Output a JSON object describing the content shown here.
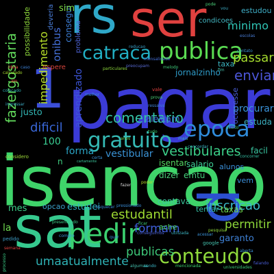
{
  "cloud": {
    "background": "#000000",
    "words": [
      {
        "text": "isencao",
        "color": "#3fd46a"
      },
      {
        "text": "pagar",
        "color": "#3b3bd6"
      },
      {
        "text": "sat",
        "color": "#36c98e"
      },
      {
        "text": "rs",
        "color": "#2fa8c8"
      },
      {
        "text": "ser",
        "color": "#e0413f"
      },
      {
        "text": "1",
        "color": "#3c4fd8"
      },
      {
        "text": "p",
        "color": "#2c4fd0"
      },
      {
        "text": "publica",
        "color": "#5adb52"
      },
      {
        "text": "catraca",
        "color": "#22b0c4"
      },
      {
        "text": "epoca",
        "color": "#2f8bd9"
      },
      {
        "text": "gratuito",
        "color": "#35b9b4"
      },
      {
        "text": "pedir",
        "color": "#3bd06f"
      },
      {
        "text": "conteudo",
        "color": "#8fd93c"
      },
      {
        "text": "fazergostaria",
        "color": "#60d65a"
      },
      {
        "text": "enviar",
        "color": "#4b55d6"
      },
      {
        "text": "passar",
        "color": "#a6dd2e"
      },
      {
        "text": "comentario",
        "color": "#35c3a7"
      },
      {
        "text": "vestibulares",
        "color": "#3cd18a"
      },
      {
        "text": "inscricao",
        "color": "#3cb9c9"
      },
      {
        "text": "umaatualmente",
        "color": "#2fb3b6"
      },
      {
        "text": "estudantil",
        "color": "#9fdc32"
      },
      {
        "text": "publicas",
        "color": "#3ec979"
      },
      {
        "text": "formam",
        "color": "#3e5ed8"
      },
      {
        "text": "permitir",
        "color": "#8ed83a"
      },
      {
        "text": "impedimento",
        "color": "#b9e12a"
      },
      {
        "text": "onibus",
        "color": "#4570d8"
      },
      {
        "text": "dificil",
        "color": "#3967d7"
      },
      {
        "text": "minimo",
        "color": "#2fc4b4"
      },
      {
        "text": "100",
        "color": "#3ad094"
      },
      {
        "text": "forma",
        "color": "#2aa5c6"
      },
      {
        "text": "vestibular",
        "color": "#3a93d6"
      },
      {
        "text": "procurar",
        "color": "#3b93d9"
      },
      {
        "text": "alertam",
        "color": "#3e6ed8"
      },
      {
        "text": "estuda",
        "color": "#3db2c4"
      },
      {
        "text": "aprendizado",
        "color": "#3c54d5"
      },
      {
        "text": "jornalzinho",
        "color": "#2f9bc8"
      },
      {
        "text": "consegui",
        "color": "#3d7fd6"
      },
      {
        "text": "possibilidade",
        "color": "#8fd93c"
      },
      {
        "text": "sim",
        "color": "#7edb42"
      },
      {
        "text": "estudou",
        "color": "#3fb0c9"
      },
      {
        "text": "justo",
        "color": "#33b7b5"
      },
      {
        "text": "mes",
        "color": "#3cd18a"
      },
      {
        "text": "opcao",
        "color": "#3a9fc8"
      },
      {
        "text": "estudei",
        "color": "#2fb4c1"
      },
      {
        "text": "contava",
        "color": "#3bc79c"
      },
      {
        "text": "tentar",
        "color": "#35c3a7"
      },
      {
        "text": "taxas",
        "color": "#6fd94f"
      },
      {
        "text": "garanto",
        "color": "#3f82d7"
      },
      {
        "text": "emtu",
        "color": "#46d07c"
      },
      {
        "text": "dizer",
        "color": "#4bd17a"
      },
      {
        "text": "isentar",
        "color": "#55d562"
      },
      {
        "text": "salario",
        "color": "#3fcf97"
      },
      {
        "text": "alunos",
        "color": "#3a8ed7"
      },
      {
        "text": "facil",
        "color": "#3bc7a2"
      },
      {
        "text": "vem",
        "color": "#3b8fd8"
      },
      {
        "text": "ache",
        "color": "#4fd369"
      },
      {
        "text": "la",
        "color": "#6ed84f"
      },
      {
        "text": "deveria",
        "color": "#4a7ed8"
      },
      {
        "text": "problema",
        "color": "#4e64d8"
      },
      {
        "text": "taxa",
        "color": "#3cb5c2"
      },
      {
        "text": "ocorresse",
        "color": "#4a5ed8"
      },
      {
        "text": "condicoes",
        "color": "#44b8c4"
      },
      {
        "text": "espere",
        "color": "#d9453c"
      },
      {
        "text": "n",
        "color": "#3fcf80"
      },
      {
        "text": "melhor",
        "color": "#3b8fd8"
      },
      {
        "text": "fazer",
        "color": "#d9d9d9"
      },
      {
        "text": "google",
        "color": "#46c4b0"
      },
      {
        "text": "pedido",
        "color": "#3fa0c8"
      },
      {
        "text": "considero",
        "color": "#a0dd3a"
      },
      {
        "text": "ingressar",
        "color": "#3fb0c9"
      },
      {
        "text": "poder",
        "color": "#b9e12a"
      },
      {
        "text": "contato",
        "color": "#3a93d6"
      },
      {
        "text": "escolas",
        "color": "#4a7ed8"
      },
      {
        "text": "particulares",
        "color": "#8fd93c"
      },
      {
        "text": "preocupam",
        "color": "#5a6cd8"
      },
      {
        "text": "melodo",
        "color": "#3ec979"
      },
      {
        "text": "colocado",
        "color": "#2fb3b6"
      },
      {
        "text": "tudo",
        "color": "#3bd06f"
      },
      {
        "text": "fim",
        "color": "#46c4b0"
      },
      {
        "text": "prova",
        "color": "#4bd17a"
      },
      {
        "text": "vale",
        "color": "#e0413f"
      },
      {
        "text": "ressalva",
        "color": "#3f82d7"
      },
      {
        "text": "calculado",
        "color": "#a6dd2e"
      },
      {
        "text": "alo",
        "color": "#e0413f"
      },
      {
        "text": "cartamente",
        "color": "#3bc79c"
      },
      {
        "text": "compro",
        "color": "#3b93d9"
      },
      {
        "text": "pressionado",
        "color": "#3a8ed7"
      },
      {
        "text": "presentando",
        "color": "#3cd18a"
      },
      {
        "text": "acessar",
        "color": "#3b93d9"
      },
      {
        "text": "utilizada",
        "color": "#3cb5c2"
      },
      {
        "text": "conseguimos",
        "color": "#4e64d8"
      },
      {
        "text": "reducao",
        "color": "#3a9fc8"
      },
      {
        "text": "mensalidade",
        "color": "#4570d8"
      },
      {
        "text": "concordar",
        "color": "#3cb9c9"
      },
      {
        "text": "concorrer",
        "color": "#35c3a7"
      },
      {
        "text": "quer",
        "color": "#3b8fd8"
      },
      {
        "text": "mencionada",
        "color": "#3bd06f"
      },
      {
        "text": "pesquisa",
        "color": "#8fd93c"
      },
      {
        "text": "universidades",
        "color": "#3ec979"
      },
      {
        "text": "semana",
        "color": "#e0413f"
      },
      {
        "text": "processo",
        "color": "#3cd18a"
      },
      {
        "text": "falando",
        "color": "#4a5ed8"
      },
      {
        "text": "aberta",
        "color": "#3b93d9"
      },
      {
        "text": "ficar",
        "color": "#3ec979"
      },
      {
        "text": "esquecer",
        "color": "#3b8fd8"
      },
      {
        "text": "anos",
        "color": "#6fd94f"
      },
      {
        "text": "certa",
        "color": "#3a93d6"
      },
      {
        "text": "mais",
        "color": "#3cb5c2"
      },
      {
        "text": "pode",
        "color": "#4bd17a"
      },
      {
        "text": "vou",
        "color": "#3fb0c9"
      },
      {
        "text": "ideia",
        "color": "#e0413f"
      },
      {
        "text": "caso",
        "color": "#3f82d7"
      },
      {
        "text": "aceito",
        "color": "#3ec979"
      },
      {
        "text": "algumas",
        "color": "#46c4b0"
      },
      {
        "text": "sendo",
        "color": "#3cb9c9"
      }
    ]
  }
}
